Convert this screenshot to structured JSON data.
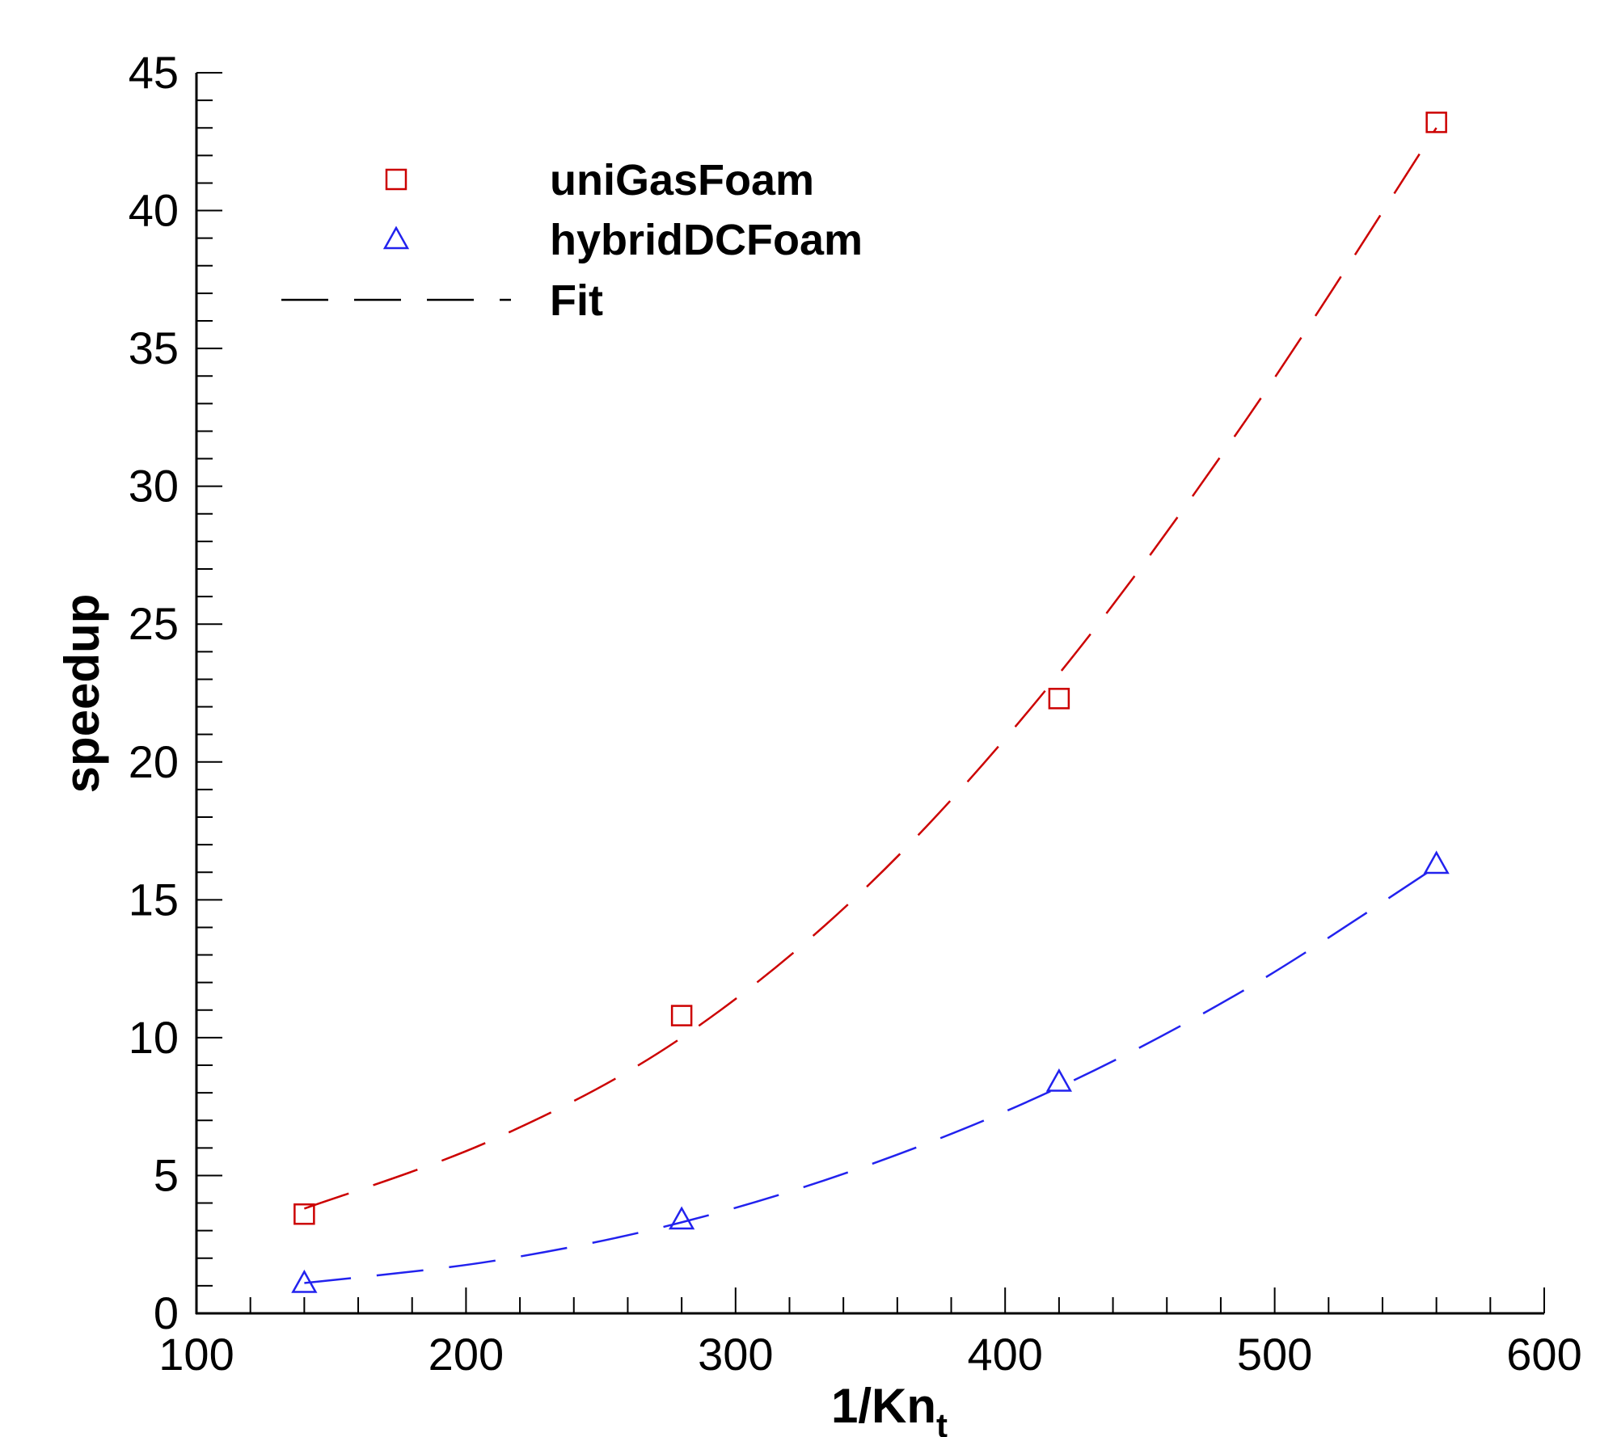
{
  "chart_data": {
    "type": "scatter",
    "xlabel": "1/Kn",
    "xlabel_subscript": "t",
    "ylabel": "speedup",
    "xlim": [
      100,
      600
    ],
    "ylim": [
      0,
      45
    ],
    "x_major_ticks": [
      100,
      200,
      300,
      400,
      500,
      600
    ],
    "x_minor_step": 20,
    "y_major_ticks": [
      0,
      5,
      10,
      15,
      20,
      25,
      30,
      35,
      40,
      45
    ],
    "y_minor_step": 1,
    "x_tick_labels": [
      "100",
      "200",
      "300",
      "400",
      "500",
      "600"
    ],
    "y_tick_labels": [
      "0",
      "5",
      "10",
      "15",
      "20",
      "25",
      "30",
      "35",
      "40",
      "45"
    ],
    "grid": false,
    "legend_position": "top-left",
    "series": [
      {
        "name": "uniGasFoam",
        "marker": "square",
        "color": "#cc0000",
        "x": [
          140,
          280,
          420,
          560
        ],
        "y": [
          3.6,
          10.8,
          22.3,
          43.2
        ]
      },
      {
        "name": "hybridDCFoam",
        "marker": "triangle",
        "color": "#2222ee",
        "x": [
          140,
          280,
          420,
          560
        ],
        "y": [
          1.1,
          3.4,
          8.4,
          16.3
        ]
      }
    ],
    "fits": [
      {
        "series": "uniGasFoam",
        "color": "#cc0000",
        "style": "dashed",
        "x": [
          140,
          210,
          280,
          350,
          420,
          490,
          560
        ],
        "y": [
          3.8,
          6.3,
          10.0,
          15.6,
          23.2,
          32.5,
          43.0
        ]
      },
      {
        "series": "hybridDCFoam",
        "color": "#2222ee",
        "style": "dashed",
        "x": [
          140,
          210,
          280,
          350,
          420,
          490,
          560
        ],
        "y": [
          1.1,
          1.9,
          3.3,
          5.4,
          8.2,
          11.8,
          16.2
        ]
      }
    ],
    "legend": [
      {
        "label": "uniGasFoam",
        "marker": "square",
        "color": "#cc0000"
      },
      {
        "label": "hybridDCFoam",
        "marker": "triangle",
        "color": "#2222ee"
      },
      {
        "label": "Fit",
        "marker": "dashed-line",
        "color": "#000000"
      }
    ]
  }
}
